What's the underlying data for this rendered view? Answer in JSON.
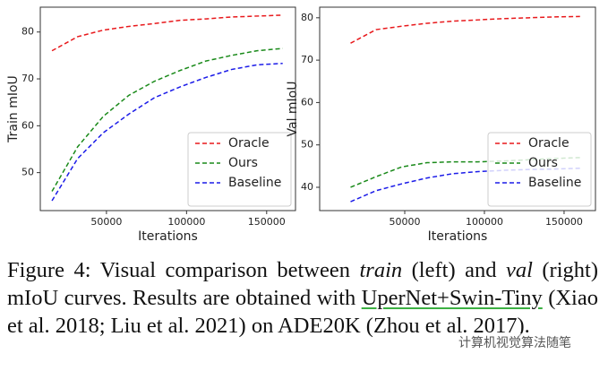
{
  "chart_data": [
    {
      "type": "line",
      "xlabel": "Iterations",
      "ylabel": "Train mIoU",
      "x": [
        16000,
        32000,
        48000,
        64000,
        80000,
        96000,
        112000,
        128000,
        144000,
        160000
      ],
      "series": [
        {
          "name": "Oracle",
          "color": "#e8191c",
          "values": [
            76,
            79,
            80.4,
            81.2,
            81.8,
            82.5,
            82.8,
            83.2,
            83.4,
            83.6
          ]
        },
        {
          "name": "Ours",
          "color": "#1a8a1a",
          "values": [
            46,
            55.5,
            62,
            66.5,
            69.5,
            71.8,
            73.8,
            75,
            76,
            76.5
          ]
        },
        {
          "name": "Baseline",
          "color": "#1c1ce8",
          "values": [
            44,
            53,
            58.5,
            62.5,
            66,
            68.3,
            70.3,
            72,
            73,
            73.3
          ]
        }
      ],
      "xlim": [
        8700,
        168000
      ],
      "xticks": [
        50000,
        100000,
        150000
      ],
      "ylim": [
        41.9,
        85.3
      ],
      "yticks": [
        50,
        60,
        70,
        80
      ],
      "legend": "lower right",
      "line_style": "dashed"
    },
    {
      "type": "line",
      "xlabel": "Iterations",
      "ylabel": "Val mIoU",
      "x": [
        16000,
        32000,
        48000,
        64000,
        80000,
        96000,
        112000,
        128000,
        144000,
        160000
      ],
      "series": [
        {
          "name": "Oracle",
          "color": "#e8191c",
          "values": [
            74,
            77.2,
            78,
            78.7,
            79.2,
            79.5,
            79.8,
            80,
            80.2,
            80.3
          ]
        },
        {
          "name": "Ours",
          "color": "#1a8a1a",
          "values": [
            40,
            42.5,
            44.8,
            45.8,
            46,
            46,
            46.2,
            46.5,
            46.8,
            47
          ]
        },
        {
          "name": "Baseline",
          "color": "#1c1ce8",
          "values": [
            36.6,
            39.2,
            40.8,
            42.2,
            43.2,
            43.7,
            44,
            44.2,
            44.3,
            44.5
          ]
        }
      ],
      "xlim": [
        -3400,
        169700
      ],
      "xticks": [
        50000,
        100000,
        150000
      ],
      "ylim": [
        34.5,
        82.5
      ],
      "yticks": [
        40,
        50,
        60,
        70,
        80
      ],
      "legend": "lower right",
      "line_style": "dashed"
    }
  ],
  "caption": [
    "Figure 4: Visual comparison between ",
    "train",
    " (left) and ",
    "val",
    " (right) mIoU curves. Results are obtained with ",
    "UperNet+Swin-Tiny",
    " (Xiao et al. 2018; Liu et al. 2021) on ADE20K (Zhou et al. 2017)."
  ],
  "watermark": "计算机视觉算法随笔"
}
